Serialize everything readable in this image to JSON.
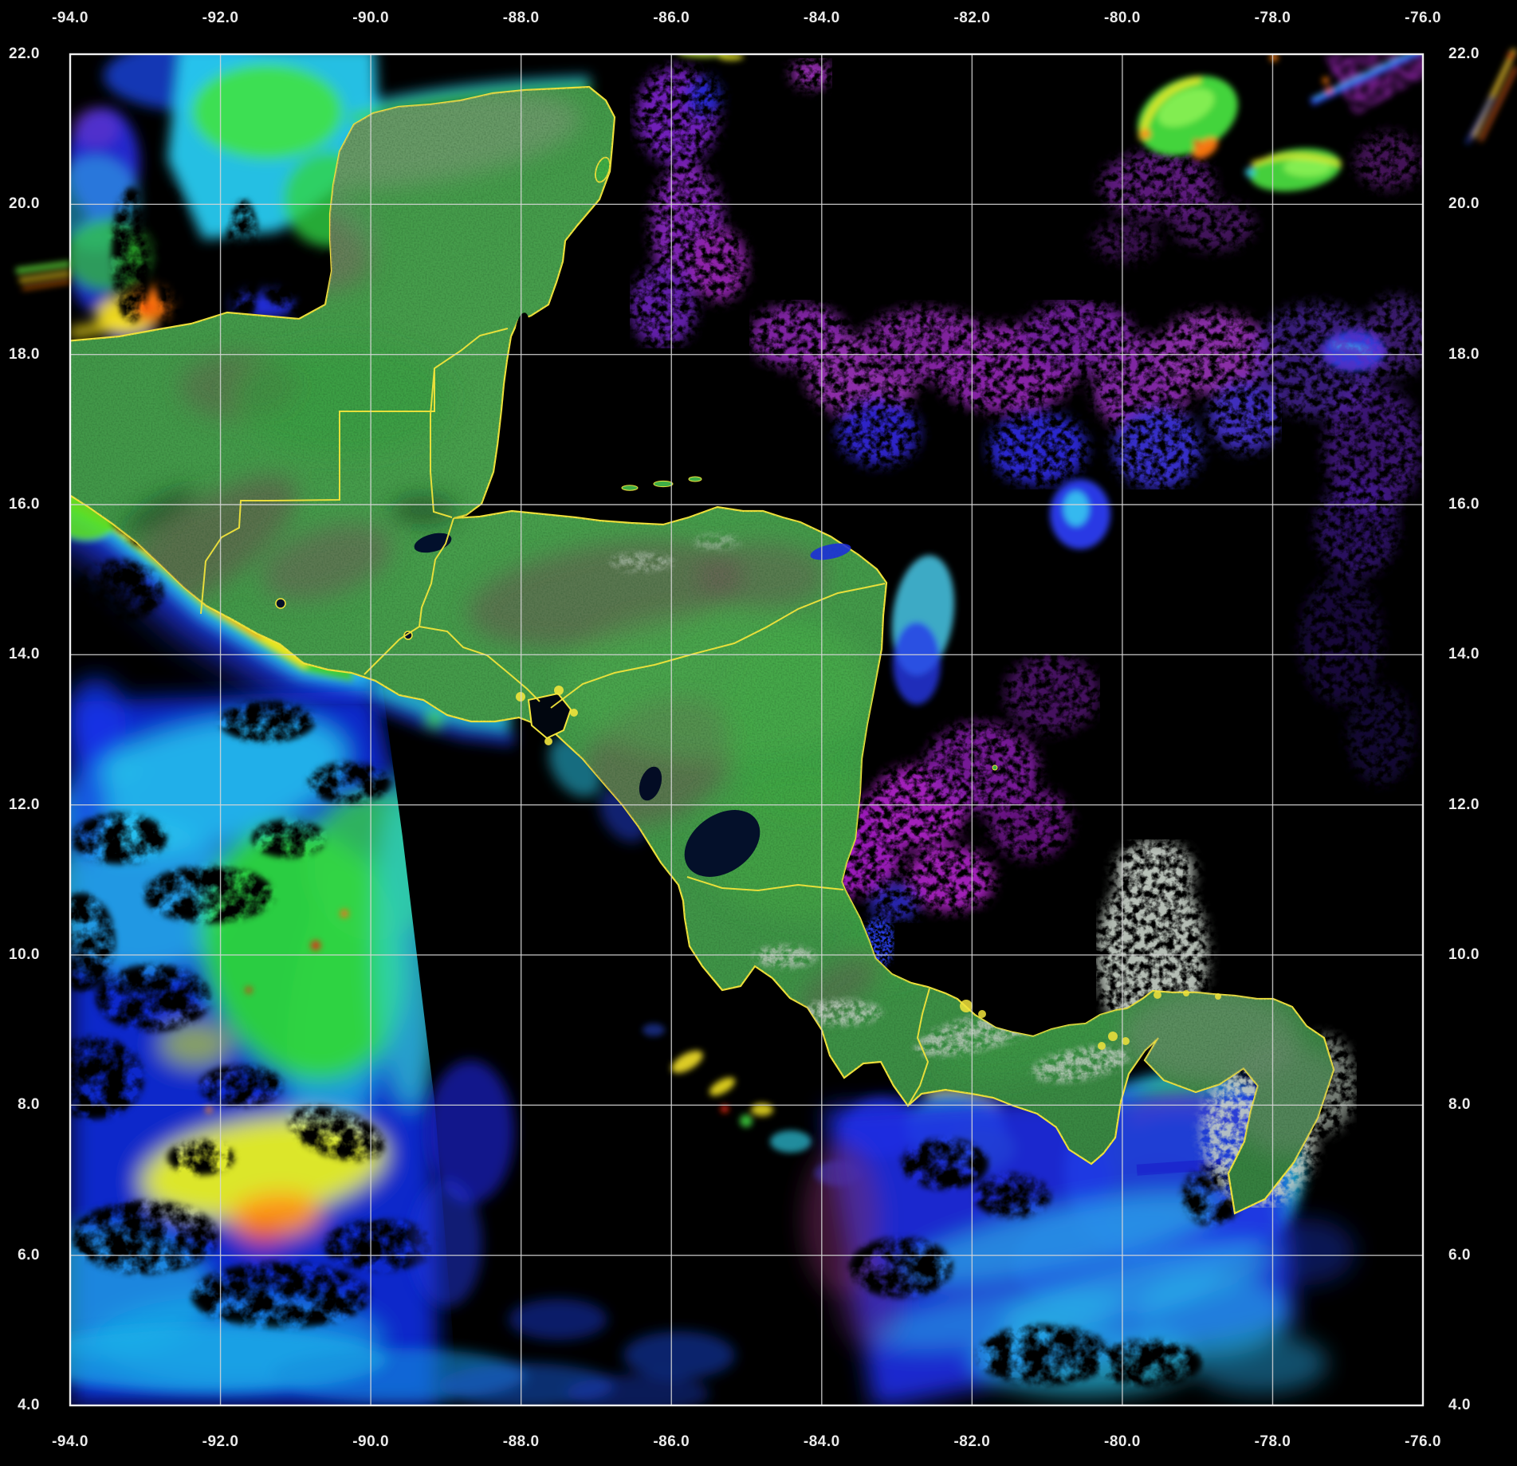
{
  "figure": {
    "kind": "satellite false-color ocean-chlorophyll composite map",
    "region_shown": "Central America / Yucatan / western Caribbean / eastern Pacific"
  },
  "axes": {
    "top_labels": [
      "-94.0",
      "-92.0",
      "-90.0",
      "-88.0",
      "-86.0",
      "-84.0",
      "-82.0",
      "-80.0",
      "-78.0",
      "-76.0"
    ],
    "bottom_labels": [
      "-94.0",
      "-92.0",
      "-90.0",
      "-88.0",
      "-86.0",
      "-84.0",
      "-82.0",
      "-80.0",
      "-78.0",
      "-76.0"
    ],
    "left_labels": [
      "22.0",
      "20.0",
      "18.0",
      "16.0",
      "14.0",
      "12.0",
      "10.0",
      "8.0",
      "6.0",
      "4.0"
    ],
    "right_labels": [
      "22.0",
      "20.0",
      "18.0",
      "16.0",
      "14.0",
      "12.0",
      "10.0",
      "8.0",
      "6.0",
      "4.0"
    ]
  },
  "grid": {
    "lon_start": -94.0,
    "lon_end": -76.0,
    "lat_start": 22.0,
    "lat_end": 4.0,
    "interval_deg": 2.0,
    "gridlines_visible": true
  },
  "palette": {
    "background": "#000000",
    "gridline": "#d6d6d6",
    "frame": "#f0f0f0",
    "tick_text": "#eaeaea",
    "political_border": "#f2e43c",
    "land_green": "#3f9447",
    "land_brown": "#6e5254",
    "cloud_white": "#c9d2c9",
    "chl_very_low_violet": "#5a2cc0",
    "chl_cloud_magenta": "#a21ec2",
    "chl_low_blue": "#1a2ae0",
    "chl_mid_cyan": "#27c9ef",
    "chl_high_green": "#35d83a",
    "chl_very_high_yellow": "#e9f021",
    "chl_extreme_orange": "#ff8c12",
    "chl_max_red": "#e03010",
    "no_data": "#000000"
  }
}
